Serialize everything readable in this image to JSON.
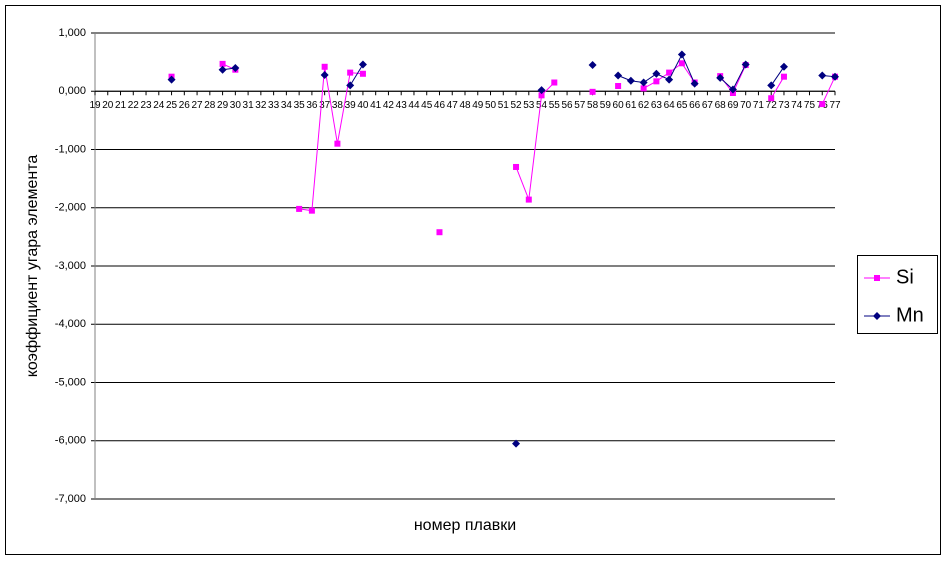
{
  "chart_data": {
    "type": "line",
    "y_label": "коэффициент угара элемента",
    "x_label": "номер плавки",
    "categories": [
      "19",
      "20",
      "21",
      "22",
      "23",
      "24",
      "25",
      "26",
      "27",
      "28",
      "29",
      "30",
      "31",
      "32",
      "33",
      "34",
      "35",
      "36",
      "37",
      "38",
      "39",
      "40",
      "41",
      "42",
      "43",
      "44",
      "45",
      "46",
      "47",
      "48",
      "49",
      "50",
      "51",
      "52",
      "53",
      "54",
      "55",
      "56",
      "57",
      "58",
      "59",
      "60",
      "61",
      "62",
      "63",
      "64",
      "65",
      "66",
      "67",
      "68",
      "69",
      "70",
      "71",
      "72",
      "73",
      "74",
      "75",
      "76",
      "77"
    ],
    "series": [
      {
        "name": "Si",
        "color": "#ff00ff",
        "marker": "square",
        "values": [
          null,
          null,
          null,
          null,
          null,
          null,
          0.25,
          null,
          null,
          null,
          0.47,
          0.37,
          null,
          null,
          null,
          null,
          -2.02,
          -2.05,
          0.42,
          -0.9,
          0.32,
          0.3,
          null,
          null,
          null,
          null,
          null,
          -2.42,
          null,
          null,
          null,
          null,
          null,
          -1.3,
          -1.86,
          -0.07,
          0.15,
          null,
          null,
          -0.01,
          null,
          0.09,
          null,
          0.05,
          0.17,
          0.32,
          0.48,
          0.15,
          null,
          0.26,
          -0.03,
          0.45,
          null,
          -0.12,
          0.25,
          null,
          null,
          -0.22,
          0.25
        ]
      },
      {
        "name": "Mn",
        "color": "#000080",
        "marker": "diamond",
        "values": [
          null,
          null,
          null,
          null,
          null,
          null,
          0.2,
          null,
          null,
          null,
          0.37,
          0.4,
          null,
          null,
          null,
          null,
          null,
          null,
          0.28,
          null,
          0.1,
          0.46,
          null,
          null,
          null,
          null,
          null,
          null,
          null,
          null,
          null,
          null,
          null,
          -6.05,
          null,
          0.02,
          null,
          null,
          null,
          0.45,
          null,
          0.27,
          0.18,
          0.15,
          0.3,
          0.2,
          0.63,
          0.13,
          null,
          0.23,
          0.03,
          0.46,
          null,
          0.1,
          0.42,
          null,
          null,
          0.27,
          0.25
        ]
      }
    ],
    "ylim": [
      -7,
      1
    ],
    "yticks": [
      {
        "value": -7,
        "label": "-7,000"
      },
      {
        "value": -6,
        "label": "-6,000"
      },
      {
        "value": -5,
        "label": "-5,000"
      },
      {
        "value": -4,
        "label": "-4,000"
      },
      {
        "value": -3,
        "label": "-3,000"
      },
      {
        "value": -2,
        "label": "-2,000"
      },
      {
        "value": -1,
        "label": "-1,000"
      },
      {
        "value": 0,
        "label": "0,000"
      },
      {
        "value": 1,
        "label": "1,000"
      }
    ],
    "grid": true,
    "legend": "right"
  }
}
